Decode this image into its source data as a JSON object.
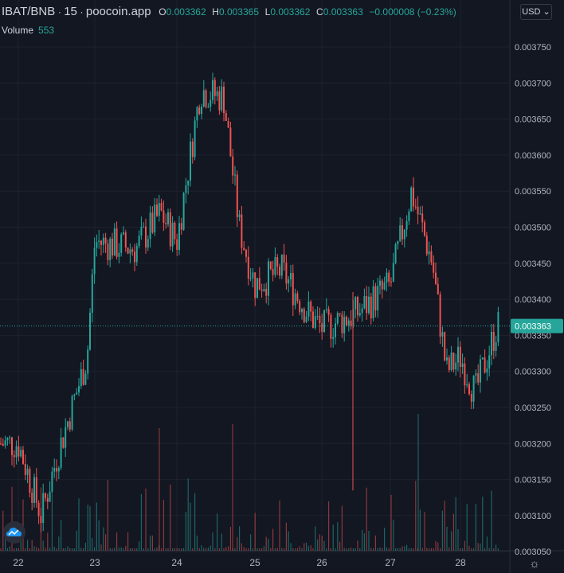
{
  "legend": {
    "symbol": "IBAT/BNB",
    "interval": "15",
    "source": "poocoin.app",
    "open_label": "O",
    "open": "0.003362",
    "high_label": "H",
    "high": "0.003365",
    "low_label": "L",
    "low": "0.003362",
    "close_label": "C",
    "close": "0.003363",
    "change": "−0.000008 (−0.23%)",
    "volume_label": "Volume",
    "volume": "553"
  },
  "currency_button": "USD",
  "colors": {
    "up": "#26a69a",
    "down": "#ef5350",
    "background": "#131722",
    "grid": "#1e222d"
  },
  "chart_data": {
    "type": "candlestick",
    "title": "",
    "price_axis_ticks": [
      "0.003750",
      "0.003700",
      "0.003650",
      "0.003600",
      "0.003550",
      "0.003500",
      "0.003450",
      "0.003400",
      "0.003350",
      "0.003300",
      "0.003250",
      "0.003200",
      "0.003150",
      "0.003100",
      "0.003050"
    ],
    "time_axis_ticks": [
      "22",
      "23",
      "24",
      "25",
      "26",
      "27",
      "28"
    ],
    "current_price": "0.003363",
    "ylim": [
      0.00301,
      0.00378
    ],
    "approx_close_path": [
      [
        "22",
        0.0032
      ],
      [
        "22.3",
        0.0031
      ],
      [
        "22.5",
        0.00318
      ],
      [
        "22.7",
        0.00325
      ],
      [
        "22.9",
        0.00332
      ],
      [
        "23",
        0.00348
      ],
      [
        "23.5",
        0.00347
      ],
      [
        "23.8",
        0.00352
      ],
      [
        "24",
        0.00348
      ],
      [
        "24.3",
        0.00369
      ],
      [
        "24.6",
        0.00368
      ],
      [
        "24.8",
        0.0035
      ],
      [
        "25",
        0.00342
      ],
      [
        "25.4",
        0.00344
      ],
      [
        "25.8",
        0.00338
      ],
      [
        "26",
        0.00336
      ],
      [
        "26.5",
        0.00338
      ],
      [
        "27",
        0.00342
      ],
      [
        "27.3",
        0.00355
      ],
      [
        "27.6",
        0.00345
      ],
      [
        "27.8",
        0.0033
      ],
      [
        "28",
        0.00332
      ],
      [
        "28.2",
        0.00327
      ],
      [
        "28.5",
        0.003363
      ]
    ],
    "min_low": 0.003135,
    "max_high": 0.00374
  }
}
